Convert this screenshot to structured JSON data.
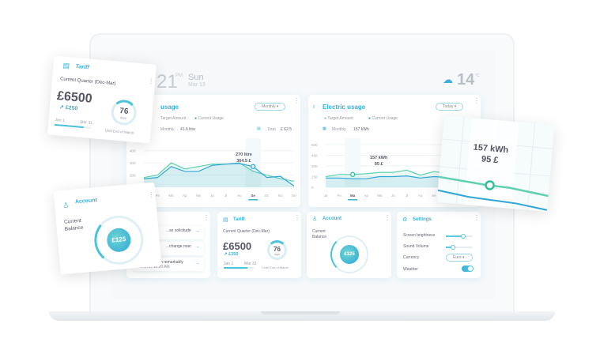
{
  "header": {
    "time": "21",
    "ampm": "PM",
    "day": "Sun",
    "date": "Mar 13",
    "temp": "14",
    "temp_unit": "°C",
    "weather_icon": "snow-cloud-icon"
  },
  "colors": {
    "accent": "#3ab0dc",
    "target": "#5fd0b0",
    "current": "#2fa6d8"
  },
  "water": {
    "title": "usage",
    "period": "Monthly",
    "legend_target": "Target Amount",
    "legend_current": "Current Usage",
    "monthly_label": "Monthly",
    "monthly_value": "41.6 litre",
    "total_label": "Total",
    "total_value": "£ 62.5",
    "tooltip_1": "270 litre",
    "tooltip_2": "364.5 £"
  },
  "electric": {
    "title": "Electric usage",
    "period": "Today",
    "legend_target": "Target Amount",
    "legend_current": "Current Usage",
    "monthly_label": "Monthly",
    "monthly_value": "157 kWh",
    "tooltip_1": "157 kWh",
    "tooltip_2": "95 £"
  },
  "chart_data": [
    {
      "type": "line",
      "categories": [
        "Ja",
        "Fe",
        "Ma",
        "Ap",
        "My",
        "Ju",
        "Jl",
        "Au",
        "Se",
        "Oc",
        "No",
        "De"
      ],
      "yticks": [
        200,
        300,
        400
      ],
      "ylim": [
        100,
        450
      ],
      "highlight": "Se",
      "series": [
        {
          "name": "Target Amount",
          "values": [
            180,
            200,
            300,
            250,
            270,
            290,
            290,
            300,
            230,
            200,
            170,
            150
          ]
        },
        {
          "name": "Current Usage",
          "values": [
            170,
            180,
            270,
            230,
            230,
            280,
            290,
            295,
            270,
            180,
            190,
            110
          ]
        }
      ]
    },
    {
      "type": "line",
      "categories": [
        "Ja",
        "Fe",
        "Ma",
        "Ap",
        "Ma",
        "Ju",
        "Jl",
        "Au",
        "Se",
        "Oc",
        "No",
        "De"
      ],
      "yticks": [
        0,
        150,
        300,
        450,
        600
      ],
      "ylim": [
        0,
        600
      ],
      "highlight": "Ma",
      "series": [
        {
          "name": "Target Amount",
          "values": [
            150,
            180,
            180,
            190,
            210,
            210,
            240,
            170,
            220,
            200,
            190,
            180
          ]
        },
        {
          "name": "Current Usage",
          "values": [
            130,
            130,
            120,
            120,
            150,
            150,
            160,
            130,
            150,
            140,
            130,
            120
          ]
        }
      ]
    }
  ],
  "list": {
    "items": [
      {
        "text": "...se solicitude"
      },
      {
        "text": "...change man"
      },
      {
        "text": "Indulgence ten remarkably",
        "sub": "March 2, 11:20 AM"
      }
    ]
  },
  "tariff": {
    "title": "Tariff",
    "quarter": "Current Quarter (Dec-Mar)",
    "amount": "£6500",
    "delta": "↗ £250",
    "start": "Jan 1",
    "end": "Mar 31",
    "days": "76",
    "days_label": "days",
    "until": "Until End of March",
    "progress": 0.8
  },
  "account": {
    "title": "Account",
    "label_1": "Current",
    "label_2": "Balance",
    "balance": "£125",
    "float_balance": "£125"
  },
  "settings": {
    "title": "Settings",
    "brightness_label": "Screen brightness",
    "brightness": 0.65,
    "volume_label": "Sound Volume",
    "volume": 0.25,
    "currency_label": "Currency",
    "currency": "Euro",
    "weather_label": "Weather",
    "weather_on": true
  },
  "zoom": {
    "line1": "157 kWh",
    "line2": "95 £"
  }
}
